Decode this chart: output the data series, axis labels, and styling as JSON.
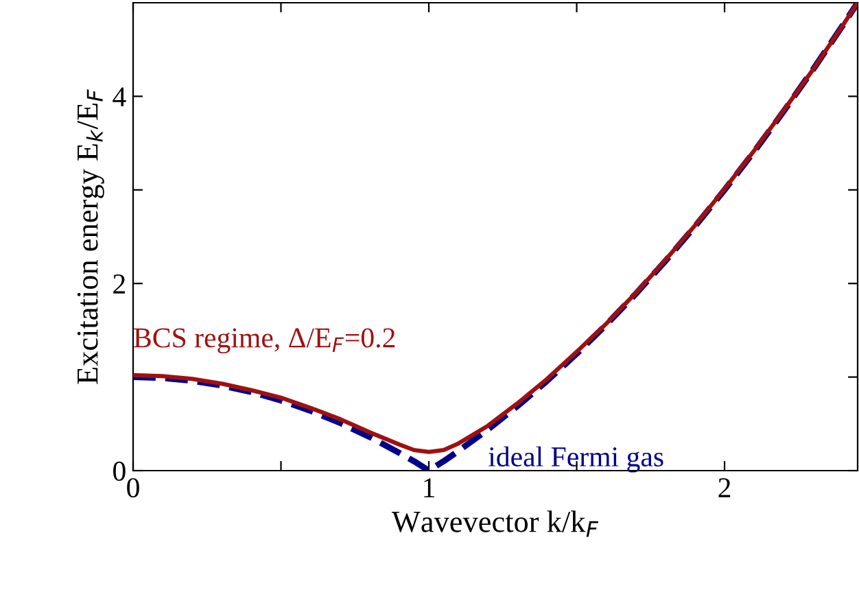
{
  "chart_data": {
    "type": "line",
    "xlabel": "Wavevector k/k$_{F}$",
    "ylabel": "Excitation energy E$_{k}$/E$_{F}$",
    "x": [
      0,
      0.1,
      0.2,
      0.3,
      0.4,
      0.5,
      0.6,
      0.7,
      0.8,
      0.9,
      0.95,
      1.0,
      1.05,
      1.1,
      1.2,
      1.3,
      1.4,
      1.5,
      1.6,
      1.7,
      1.8,
      1.9,
      2.0,
      2.1,
      2.2,
      2.3,
      2.4,
      2.45
    ],
    "series": [
      {
        "name": "ideal Fermi gas",
        "color": "#00008b",
        "line_style": "dashed",
        "values": [
          1.0,
          0.99,
          0.96,
          0.91,
          0.84,
          0.75,
          0.64,
          0.51,
          0.36,
          0.19,
          0.1,
          0.0,
          0.1,
          0.21,
          0.44,
          0.69,
          0.96,
          1.25,
          1.56,
          1.89,
          2.24,
          2.61,
          3.0,
          3.41,
          3.84,
          4.29,
          4.76,
          5.0
        ]
      },
      {
        "name": "BCS regime, Δ/E$_{F}$=0.2",
        "color": "#a01010",
        "line_style": "solid",
        "values": [
          1.02,
          1.01,
          0.98,
          0.93,
          0.86,
          0.78,
          0.67,
          0.55,
          0.41,
          0.28,
          0.22,
          0.2,
          0.22,
          0.29,
          0.48,
          0.72,
          0.98,
          1.27,
          1.57,
          1.9,
          2.25,
          2.62,
          3.01,
          3.42,
          3.85,
          4.29,
          4.76,
          5.0
        ]
      }
    ],
    "xlim": [
      0,
      2.45
    ],
    "ylim": [
      0,
      5
    ],
    "xticks": [
      0,
      {
        "value": 0.5,
        "label": null
      },
      1,
      {
        "value": 1.5,
        "label": null
      },
      2
    ],
    "yticks": [
      0,
      {
        "value": 1,
        "label": null
      },
      2,
      {
        "value": 3,
        "label": null
      },
      4
    ],
    "grid": false,
    "legend": false,
    "marker": "none"
  }
}
